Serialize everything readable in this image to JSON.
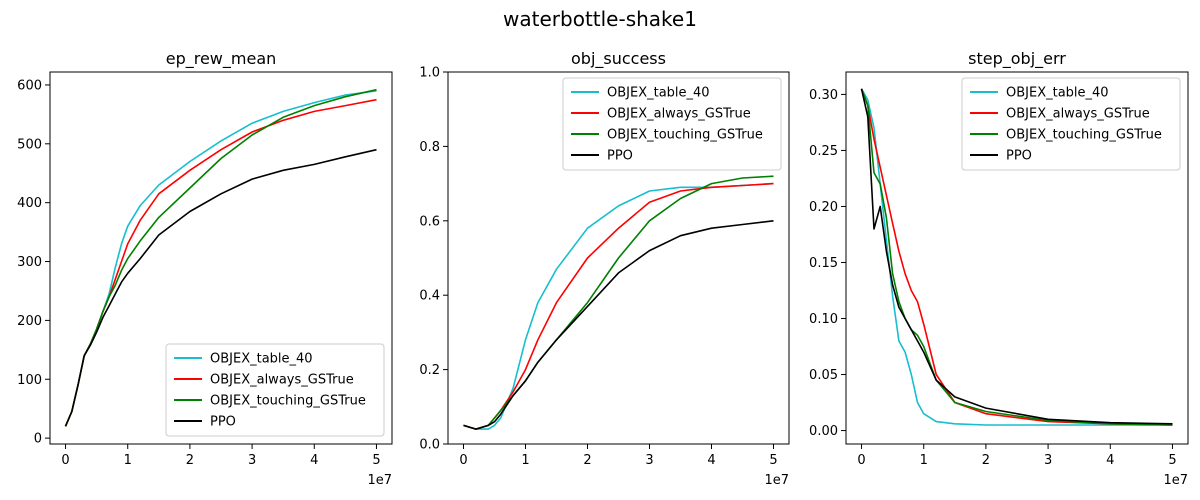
{
  "figure": {
    "title": "waterbottle-shake1"
  },
  "chart_data": [
    {
      "type": "line",
      "title": "ep_rew_mean",
      "xlabel": "",
      "ylabel": "",
      "x_offset_label": "1e7",
      "xlim": [
        -0.25,
        5.25
      ],
      "ylim": [
        -10,
        622
      ],
      "xticks": [
        0,
        1,
        2,
        3,
        4,
        5
      ],
      "yticks": [
        0,
        100,
        200,
        300,
        400,
        500,
        600
      ],
      "legend": "lower-right",
      "grid": false,
      "series": [
        {
          "name": "OBJEX_table_40",
          "color": "#17becf",
          "x": [
            0,
            0.1,
            0.2,
            0.3,
            0.4,
            0.5,
            0.6,
            0.7,
            0.8,
            0.9,
            1.0,
            1.2,
            1.5,
            2.0,
            2.5,
            3.0,
            3.5,
            4.0,
            4.5,
            5.0
          ],
          "y": [
            20,
            45,
            90,
            140,
            160,
            185,
            215,
            245,
            290,
            330,
            360,
            395,
            430,
            470,
            505,
            535,
            555,
            570,
            583,
            590
          ]
        },
        {
          "name": "OBJEX_always_GSTrue",
          "color": "#ff0000",
          "x": [
            0,
            0.1,
            0.2,
            0.3,
            0.4,
            0.5,
            0.6,
            0.7,
            0.8,
            0.9,
            1.0,
            1.2,
            1.5,
            2.0,
            2.5,
            3.0,
            3.5,
            4.0,
            4.5,
            5.0
          ],
          "y": [
            20,
            45,
            90,
            140,
            160,
            185,
            215,
            240,
            270,
            300,
            330,
            370,
            415,
            455,
            490,
            520,
            540,
            555,
            565,
            575
          ]
        },
        {
          "name": "OBJEX_touching_GSTrue",
          "color": "#008000",
          "x": [
            0,
            0.1,
            0.2,
            0.3,
            0.4,
            0.5,
            0.6,
            0.7,
            0.8,
            0.9,
            1.0,
            1.2,
            1.5,
            2.0,
            2.5,
            3.0,
            3.5,
            4.0,
            4.5,
            5.0
          ],
          "y": [
            20,
            45,
            90,
            140,
            160,
            185,
            215,
            240,
            260,
            285,
            305,
            335,
            375,
            425,
            475,
            515,
            545,
            565,
            580,
            592
          ]
        },
        {
          "name": "PPO",
          "color": "#000000",
          "x": [
            0,
            0.1,
            0.2,
            0.3,
            0.4,
            0.5,
            0.6,
            0.7,
            0.8,
            0.9,
            1.0,
            1.2,
            1.5,
            2.0,
            2.5,
            3.0,
            3.5,
            4.0,
            4.5,
            5.0
          ],
          "y": [
            20,
            45,
            90,
            140,
            158,
            180,
            205,
            225,
            245,
            265,
            280,
            305,
            345,
            385,
            415,
            440,
            455,
            465,
            478,
            490
          ]
        }
      ]
    },
    {
      "type": "line",
      "title": "obj_success",
      "xlabel": "",
      "ylabel": "",
      "x_offset_label": "1e7",
      "xlim": [
        -0.25,
        5.25
      ],
      "ylim": [
        0,
        1.0
      ],
      "xticks": [
        0,
        1,
        2,
        3,
        4,
        5
      ],
      "yticks": [
        0.0,
        0.2,
        0.4,
        0.6,
        0.8,
        1.0
      ],
      "legend": "top-right",
      "grid": false,
      "series": [
        {
          "name": "OBJEX_table_40",
          "color": "#17becf",
          "x": [
            0,
            0.2,
            0.4,
            0.5,
            0.6,
            0.8,
            1.0,
            1.2,
            1.5,
            2.0,
            2.5,
            3.0,
            3.5,
            4.0,
            4.5,
            5.0
          ],
          "y": [
            0.05,
            0.04,
            0.04,
            0.05,
            0.07,
            0.15,
            0.28,
            0.38,
            0.47,
            0.58,
            0.64,
            0.68,
            0.69,
            0.69,
            0.695,
            0.7
          ]
        },
        {
          "name": "OBJEX_always_GSTrue",
          "color": "#ff0000",
          "x": [
            0,
            0.2,
            0.4,
            0.5,
            0.6,
            0.8,
            1.0,
            1.2,
            1.5,
            2.0,
            2.5,
            3.0,
            3.5,
            4.0,
            4.5,
            5.0
          ],
          "y": [
            0.05,
            0.04,
            0.05,
            0.07,
            0.09,
            0.14,
            0.2,
            0.28,
            0.38,
            0.5,
            0.58,
            0.65,
            0.68,
            0.69,
            0.695,
            0.7
          ]
        },
        {
          "name": "OBJEX_touching_GSTrue",
          "color": "#008000",
          "x": [
            0,
            0.2,
            0.4,
            0.5,
            0.6,
            0.8,
            1.0,
            1.2,
            1.5,
            2.0,
            2.5,
            3.0,
            3.5,
            4.0,
            4.5,
            5.0
          ],
          "y": [
            0.05,
            0.04,
            0.05,
            0.07,
            0.09,
            0.13,
            0.17,
            0.22,
            0.28,
            0.38,
            0.5,
            0.6,
            0.66,
            0.7,
            0.715,
            0.72
          ]
        },
        {
          "name": "PPO",
          "color": "#000000",
          "x": [
            0,
            0.2,
            0.4,
            0.5,
            0.6,
            0.8,
            1.0,
            1.2,
            1.5,
            2.0,
            2.5,
            3.0,
            3.5,
            4.0,
            4.5,
            5.0
          ],
          "y": [
            0.05,
            0.04,
            0.05,
            0.06,
            0.08,
            0.13,
            0.17,
            0.22,
            0.28,
            0.37,
            0.46,
            0.52,
            0.56,
            0.58,
            0.59,
            0.6
          ]
        }
      ]
    },
    {
      "type": "line",
      "title": "step_obj_err",
      "xlabel": "",
      "ylabel": "",
      "x_offset_label": "1e7",
      "xlim": [
        -0.25,
        5.25
      ],
      "ylim": [
        -0.012,
        0.32
      ],
      "xticks": [
        0,
        1,
        2,
        3,
        4,
        5
      ],
      "yticks": [
        0.0,
        0.05,
        0.1,
        0.15,
        0.2,
        0.25,
        0.3
      ],
      "legend": "top-right",
      "grid": false,
      "series": [
        {
          "name": "OBJEX_table_40",
          "color": "#17becf",
          "x": [
            0,
            0.1,
            0.2,
            0.3,
            0.4,
            0.5,
            0.6,
            0.7,
            0.8,
            0.9,
            1.0,
            1.2,
            1.5,
            2.0,
            3.0,
            4.0,
            5.0
          ],
          "y": [
            0.305,
            0.295,
            0.27,
            0.22,
            0.17,
            0.12,
            0.08,
            0.07,
            0.05,
            0.025,
            0.015,
            0.008,
            0.006,
            0.005,
            0.005,
            0.005,
            0.005
          ]
        },
        {
          "name": "OBJEX_always_GSTrue",
          "color": "#ff0000",
          "x": [
            0,
            0.1,
            0.2,
            0.3,
            0.4,
            0.5,
            0.6,
            0.7,
            0.8,
            0.9,
            1.0,
            1.2,
            1.5,
            2.0,
            3.0,
            4.0,
            5.0
          ],
          "y": [
            0.305,
            0.29,
            0.26,
            0.235,
            0.21,
            0.185,
            0.16,
            0.14,
            0.125,
            0.115,
            0.095,
            0.05,
            0.025,
            0.015,
            0.008,
            0.006,
            0.005
          ]
        },
        {
          "name": "OBJEX_touching_GSTrue",
          "color": "#008000",
          "x": [
            0,
            0.1,
            0.2,
            0.3,
            0.4,
            0.5,
            0.6,
            0.7,
            0.8,
            0.9,
            1.0,
            1.2,
            1.5,
            2.0,
            3.0,
            4.0,
            5.0
          ],
          "y": [
            0.305,
            0.29,
            0.23,
            0.22,
            0.19,
            0.14,
            0.115,
            0.1,
            0.09,
            0.085,
            0.075,
            0.045,
            0.025,
            0.017,
            0.009,
            0.006,
            0.005
          ]
        },
        {
          "name": "PPO",
          "color": "#000000",
          "x": [
            0,
            0.1,
            0.2,
            0.3,
            0.4,
            0.5,
            0.6,
            0.7,
            0.8,
            0.9,
            1.0,
            1.2,
            1.5,
            2.0,
            3.0,
            4.0,
            5.0
          ],
          "y": [
            0.305,
            0.28,
            0.18,
            0.2,
            0.16,
            0.13,
            0.11,
            0.1,
            0.09,
            0.08,
            0.07,
            0.045,
            0.03,
            0.02,
            0.01,
            0.007,
            0.006
          ]
        }
      ]
    }
  ]
}
